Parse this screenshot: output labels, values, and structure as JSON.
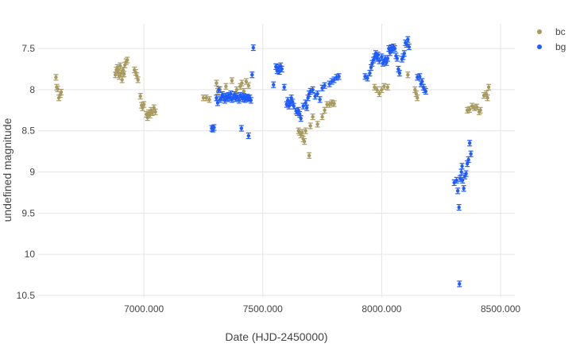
{
  "chart_data": {
    "type": "scatter",
    "xlabel": "Date (HJD-2450000)",
    "ylabel": "undefined magnitude",
    "x_range": [
      6555,
      8560
    ],
    "y_range": [
      10.52,
      7.2
    ],
    "y_reversed": true,
    "x_ticks": [
      7000,
      7500,
      8000,
      8500
    ],
    "x_tick_labels": [
      "7000.000",
      "7500.000",
      "8000.000",
      "8500.000"
    ],
    "y_ticks": [
      7.5,
      8,
      8.5,
      9,
      9.5,
      10,
      10.5
    ],
    "y_tick_labels": [
      "7.5",
      "8",
      "8.5",
      "9",
      "9.5",
      "10",
      "10.5"
    ],
    "grid": true,
    "legend_position": "top-right",
    "error_bars": true,
    "series": [
      {
        "name": "bc",
        "color": "#a89a5f",
        "points": [
          [
            6630,
            7.85
          ],
          [
            6633,
            7.97
          ],
          [
            6637,
            7.99
          ],
          [
            6642,
            8.1
          ],
          [
            6648,
            8.06
          ],
          [
            6652,
            8.03
          ],
          [
            6880,
            7.82
          ],
          [
            6884,
            7.76
          ],
          [
            6888,
            7.73
          ],
          [
            6892,
            7.79
          ],
          [
            6896,
            7.84
          ],
          [
            6900,
            7.71
          ],
          [
            6904,
            7.8
          ],
          [
            6908,
            7.88
          ],
          [
            6912,
            7.76
          ],
          [
            6916,
            7.81
          ],
          [
            6920,
            7.7
          ],
          [
            6925,
            7.66
          ],
          [
            6930,
            7.64
          ],
          [
            6960,
            7.76
          ],
          [
            6965,
            7.79
          ],
          [
            6970,
            7.83
          ],
          [
            6975,
            7.88
          ],
          [
            6985,
            8.08
          ],
          [
            6990,
            8.19
          ],
          [
            6994,
            8.22
          ],
          [
            7000,
            8.18
          ],
          [
            7010,
            8.3
          ],
          [
            7015,
            8.34
          ],
          [
            7020,
            8.28
          ],
          [
            7025,
            8.31
          ],
          [
            7030,
            8.25
          ],
          [
            7035,
            8.28
          ],
          [
            7042,
            8.22
          ],
          [
            7048,
            8.27
          ],
          [
            7250,
            8.1
          ],
          [
            7262,
            8.1
          ],
          [
            7275,
            8.12
          ],
          [
            7305,
            7.92
          ],
          [
            7310,
            8.02
          ],
          [
            7320,
            8.0
          ],
          [
            7345,
            7.96
          ],
          [
            7370,
            7.89
          ],
          [
            7390,
            8.0
          ],
          [
            7405,
            7.96
          ],
          [
            7412,
            7.92
          ],
          [
            7420,
            8.02
          ],
          [
            7430,
            7.9
          ],
          [
            7440,
            7.95
          ],
          [
            7650,
            8.5
          ],
          [
            7655,
            8.52
          ],
          [
            7660,
            8.55
          ],
          [
            7665,
            8.52
          ],
          [
            7670,
            8.6
          ],
          [
            7675,
            8.63
          ],
          [
            7680,
            8.5
          ],
          [
            7695,
            8.8
          ],
          [
            7700,
            8.44
          ],
          [
            7710,
            8.33
          ],
          [
            7730,
            8.42
          ],
          [
            7750,
            8.33
          ],
          [
            7760,
            8.25
          ],
          [
            7770,
            8.18
          ],
          [
            7780,
            8.18
          ],
          [
            7790,
            8.16
          ],
          [
            7800,
            8.17
          ],
          [
            7970,
            7.97
          ],
          [
            7980,
            8.0
          ],
          [
            7990,
            8.05
          ],
          [
            8000,
            8.0
          ],
          [
            8010,
            7.96
          ],
          [
            8025,
            7.97
          ],
          [
            8110,
            7.82
          ],
          [
            8140,
            8.0
          ],
          [
            8145,
            8.05
          ],
          [
            8150,
            8.1
          ],
          [
            8360,
            8.25
          ],
          [
            8370,
            8.24
          ],
          [
            8380,
            8.2
          ],
          [
            8390,
            8.22
          ],
          [
            8400,
            8.21
          ],
          [
            8410,
            8.27
          ],
          [
            8415,
            8.25
          ],
          [
            8430,
            8.07
          ],
          [
            8440,
            8.05
          ],
          [
            8445,
            8.1
          ],
          [
            8450,
            7.97
          ]
        ]
      },
      {
        "name": "bg",
        "color": "#1f5bff",
        "points": [
          [
            7285,
            8.47
          ],
          [
            7290,
            8.48
          ],
          [
            7295,
            8.46
          ],
          [
            7305,
            8.1
          ],
          [
            7310,
            8.16
          ],
          [
            7315,
            8.0
          ],
          [
            7320,
            8.12
          ],
          [
            7325,
            8.1
          ],
          [
            7330,
            8.06
          ],
          [
            7335,
            8.09
          ],
          [
            7340,
            8.13
          ],
          [
            7345,
            8.08
          ],
          [
            7350,
            8.11
          ],
          [
            7355,
            8.07
          ],
          [
            7360,
            8.1
          ],
          [
            7365,
            8.05
          ],
          [
            7370,
            8.12
          ],
          [
            7375,
            8.09
          ],
          [
            7380,
            8.06
          ],
          [
            7385,
            8.11
          ],
          [
            7390,
            8.08
          ],
          [
            7395,
            8.1
          ],
          [
            7400,
            8.13
          ],
          [
            7405,
            8.07
          ],
          [
            7410,
            8.09
          ],
          [
            7415,
            8.11
          ],
          [
            7420,
            8.08
          ],
          [
            7425,
            8.12
          ],
          [
            7430,
            8.1
          ],
          [
            7435,
            8.09
          ],
          [
            7440,
            8.11
          ],
          [
            7445,
            8.1
          ],
          [
            7450,
            8.13
          ],
          [
            7410,
            8.47
          ],
          [
            7440,
            8.56
          ],
          [
            7455,
            7.82
          ],
          [
            7460,
            7.49
          ],
          [
            7545,
            7.94
          ],
          [
            7555,
            7.72
          ],
          [
            7560,
            7.77
          ],
          [
            7565,
            7.73
          ],
          [
            7570,
            7.78
          ],
          [
            7575,
            7.71
          ],
          [
            7580,
            7.75
          ],
          [
            7590,
            7.97
          ],
          [
            7600,
            8.18
          ],
          [
            7605,
            8.13
          ],
          [
            7610,
            8.2
          ],
          [
            7615,
            8.16
          ],
          [
            7620,
            8.1
          ],
          [
            7625,
            8.15
          ],
          [
            7630,
            8.2
          ],
          [
            7640,
            8.26
          ],
          [
            7645,
            8.28
          ],
          [
            7650,
            8.25
          ],
          [
            7655,
            8.3
          ],
          [
            7660,
            8.35
          ],
          [
            7670,
            8.2
          ],
          [
            7680,
            8.16
          ],
          [
            7685,
            8.22
          ],
          [
            7690,
            8.1
          ],
          [
            7695,
            8.05
          ],
          [
            7700,
            8.02
          ],
          [
            7710,
            8.0
          ],
          [
            7720,
            8.08
          ],
          [
            7730,
            8.05
          ],
          [
            7740,
            8.12
          ],
          [
            7750,
            7.98
          ],
          [
            7760,
            7.95
          ],
          [
            7780,
            7.93
          ],
          [
            7790,
            7.9
          ],
          [
            7800,
            7.88
          ],
          [
            7810,
            7.85
          ],
          [
            7820,
            7.84
          ],
          [
            7930,
            7.84
          ],
          [
            7940,
            7.86
          ],
          [
            7950,
            7.8
          ],
          [
            7955,
            7.73
          ],
          [
            7960,
            7.68
          ],
          [
            7965,
            7.64
          ],
          [
            7970,
            7.6
          ],
          [
            7975,
            7.56
          ],
          [
            7980,
            7.62
          ],
          [
            7985,
            7.58
          ],
          [
            7990,
            7.65
          ],
          [
            8000,
            7.6
          ],
          [
            8005,
            7.68
          ],
          [
            8010,
            7.66
          ],
          [
            8015,
            7.62
          ],
          [
            8020,
            7.67
          ],
          [
            8025,
            7.62
          ],
          [
            8030,
            7.5
          ],
          [
            8035,
            7.55
          ],
          [
            8040,
            7.49
          ],
          [
            8045,
            7.52
          ],
          [
            8050,
            7.48
          ],
          [
            8055,
            7.5
          ],
          [
            8060,
            7.59
          ],
          [
            8065,
            7.62
          ],
          [
            8070,
            7.75
          ],
          [
            8075,
            7.8
          ],
          [
            8085,
            7.63
          ],
          [
            8090,
            7.6
          ],
          [
            8095,
            7.56
          ],
          [
            8100,
            7.43
          ],
          [
            8105,
            7.45
          ],
          [
            8110,
            7.39
          ],
          [
            8115,
            7.48
          ],
          [
            8150,
            7.85
          ],
          [
            8160,
            7.84
          ],
          [
            8165,
            7.93
          ],
          [
            8170,
            7.9
          ],
          [
            8175,
            7.97
          ],
          [
            8180,
            8.0
          ],
          [
            8185,
            8.02
          ],
          [
            8305,
            9.13
          ],
          [
            8315,
            9.1
          ],
          [
            8320,
            9.23
          ],
          [
            8325,
            9.43
          ],
          [
            8327,
            10.36
          ],
          [
            8330,
            9.08
          ],
          [
            8335,
            9.0
          ],
          [
            8338,
            8.93
          ],
          [
            8340,
            9.1
          ],
          [
            8345,
            9.2
          ],
          [
            8350,
            9.05
          ],
          [
            8355,
            9.02
          ],
          [
            8360,
            8.9
          ],
          [
            8365,
            8.85
          ],
          [
            8370,
            8.65
          ],
          [
            8375,
            8.78
          ]
        ]
      }
    ]
  }
}
